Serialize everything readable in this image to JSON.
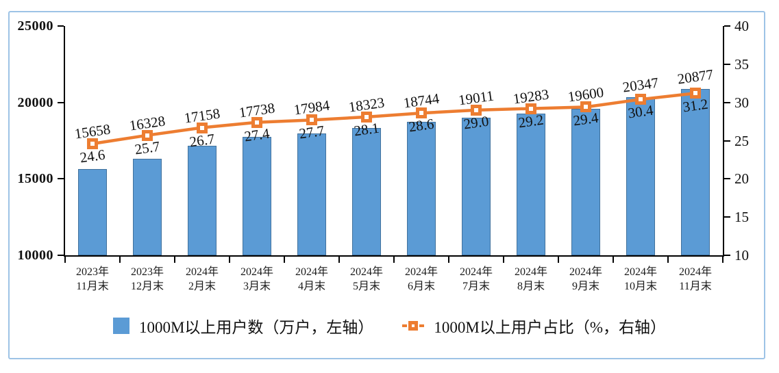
{
  "chart_data": {
    "type": "combo-bar-line",
    "title": "",
    "categories": [
      "2023年\n11月末",
      "2023年\n12月末",
      "2024年\n2月末",
      "2024年\n3月末",
      "2024年\n4月末",
      "2024年\n5月末",
      "2024年\n6月末",
      "2024年\n7月末",
      "2024年\n8月末",
      "2024年\n9月末",
      "2024年\n10月末",
      "2024年\n11月末"
    ],
    "series": [
      {
        "name": "1000M以上用户数（万户，左轴）",
        "type": "bar",
        "axis": "left",
        "values": [
          15658,
          16328,
          17158,
          17738,
          17984,
          18323,
          18744,
          19011,
          19283,
          19600,
          20347,
          20877
        ]
      },
      {
        "name": "1000M以上用户占比（%，右轴）",
        "type": "line",
        "axis": "right",
        "values": [
          24.6,
          25.7,
          26.7,
          27.4,
          27.7,
          28.1,
          28.6,
          29.0,
          29.2,
          29.4,
          30.4,
          31.2
        ]
      }
    ],
    "left_axis": {
      "min": 10000,
      "max": 25000,
      "ticks": [
        25000,
        20000,
        15000,
        10000
      ]
    },
    "right_axis": {
      "min": 10,
      "max": 40,
      "ticks": [
        40,
        35,
        30,
        25,
        20,
        15,
        10
      ]
    },
    "grid": false,
    "legend_position": "bottom",
    "colors": {
      "bar_fill": "#5B9BD5",
      "bar_border": "#41719C",
      "line": "#ED7D31",
      "marker_center": "#FFFFFF",
      "axis": "#000000",
      "frame_border": "#9DC3E6",
      "text": "#111111"
    }
  },
  "legend": {
    "items": [
      {
        "label": "1000M以上用户数（万户，左轴）"
      },
      {
        "label": "1000M以上用户占比（%，右轴）"
      }
    ]
  }
}
